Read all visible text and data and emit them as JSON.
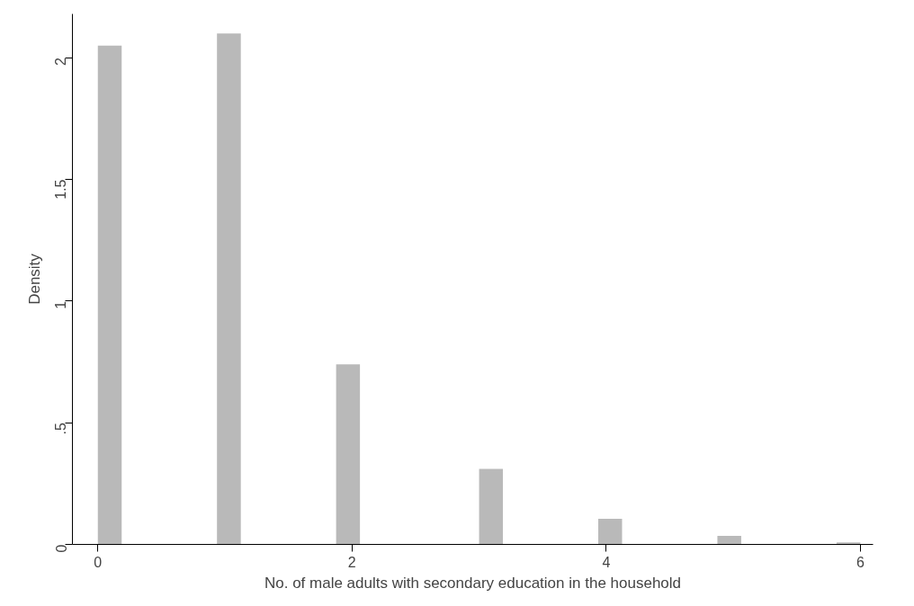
{
  "chart_data": {
    "type": "histogram",
    "xlabel": "No. of male adults with secondary education in the household",
    "ylabel": "Density",
    "bins": [
      0,
      0.1875,
      0.375,
      0.5625,
      0.75,
      0.9375,
      1.125,
      1.3125,
      1.5,
      1.6875,
      1.875,
      2.0625,
      2.25,
      2.4375,
      2.625,
      2.8125,
      3,
      3.1875,
      3.375,
      3.5625,
      3.75,
      3.9375,
      4.125,
      4.3125,
      4.5,
      4.6875,
      4.875,
      5.0625,
      5.25,
      5.4375,
      5.625,
      5.8125,
      6
    ],
    "values": [
      2.05,
      0,
      0,
      0,
      0,
      2.1,
      0,
      0,
      0,
      0,
      0.74,
      0,
      0,
      0,
      0,
      0,
      0.31,
      0,
      0,
      0,
      0,
      0.105,
      0,
      0,
      0,
      0,
      0.035,
      0,
      0,
      0,
      0,
      0.008
    ],
    "color": "#b9b9b9",
    "xlim": [
      -0.2,
      6.1
    ],
    "ylim": [
      0,
      2.18
    ],
    "xticks": [
      0,
      2,
      4,
      6
    ],
    "yticks": [
      {
        "value": 0,
        "label": "0"
      },
      {
        "value": 0.5,
        "label": ".5"
      },
      {
        "value": 1,
        "label": "1"
      },
      {
        "value": 1.5,
        "label": "1.5"
      },
      {
        "value": 2,
        "label": "2"
      }
    ],
    "grid": false
  }
}
